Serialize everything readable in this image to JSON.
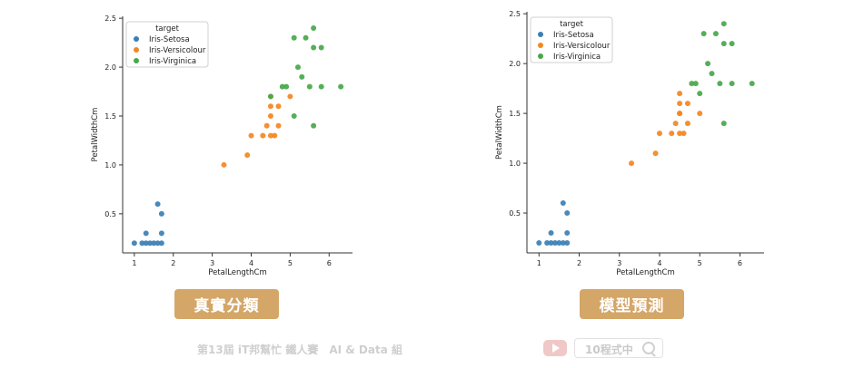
{
  "colors": {
    "setosa": "#3a7fb5",
    "versicolour": "#f5861f",
    "virginica": "#47a84a",
    "badge": "#d4a668",
    "watermark": "#cfcfcf"
  },
  "badges": {
    "left": "真實分類",
    "right": "模型預測"
  },
  "watermark": {
    "event": "第13屆 iT邦幫忙 鐵人賽　AI & Data 組",
    "search_text": "10程式中"
  },
  "chart_data": [
    {
      "type": "scatter",
      "xlabel": "PetalLengthCm",
      "ylabel": "PetalWidthCm",
      "xlim": [
        0.7,
        6.6
      ],
      "ylim": [
        0.1,
        2.52
      ],
      "xticks": [
        "1",
        "2",
        "3",
        "4",
        "5",
        "6"
      ],
      "yticks": [
        "0.5",
        "1.0",
        "1.5",
        "2.0",
        "2.5"
      ],
      "legend": {
        "title": "target",
        "placement": "top-left"
      },
      "series": [
        {
          "name": "Iris-Setosa",
          "color": "setosa",
          "points": [
            [
              1.0,
              0.2
            ],
            [
              1.2,
              0.2
            ],
            [
              1.3,
              0.2
            ],
            [
              1.3,
              0.3
            ],
            [
              1.4,
              0.2
            ],
            [
              1.5,
              0.2
            ],
            [
              1.6,
              0.2
            ],
            [
              1.6,
              0.6
            ],
            [
              1.7,
              0.2
            ],
            [
              1.7,
              0.3
            ],
            [
              1.7,
              0.5
            ]
          ]
        },
        {
          "name": "Iris-Versicolour",
          "color": "versicolour",
          "points": [
            [
              3.3,
              1.0
            ],
            [
              3.9,
              1.1
            ],
            [
              4.0,
              1.3
            ],
            [
              4.3,
              1.3
            ],
            [
              4.4,
              1.4
            ],
            [
              4.5,
              1.3
            ],
            [
              4.5,
              1.5
            ],
            [
              4.5,
              1.6
            ],
            [
              4.6,
              1.3
            ],
            [
              4.7,
              1.4
            ],
            [
              4.7,
              1.6
            ],
            [
              5.0,
              1.7
            ],
            [
              4.5,
              1.7
            ]
          ]
        },
        {
          "name": "Iris-Virginica",
          "color": "virginica",
          "points": [
            [
              4.8,
              1.8
            ],
            [
              4.9,
              1.8
            ],
            [
              5.1,
              1.5
            ],
            [
              5.1,
              2.3
            ],
            [
              5.2,
              2.0
            ],
            [
              5.3,
              1.9
            ],
            [
              5.4,
              2.3
            ],
            [
              5.5,
              1.8
            ],
            [
              5.6,
              2.2
            ],
            [
              5.6,
              2.4
            ],
            [
              5.6,
              1.4
            ],
            [
              5.8,
              2.2
            ],
            [
              5.8,
              1.8
            ],
            [
              6.3,
              1.8
            ],
            [
              4.5,
              1.7
            ]
          ]
        }
      ]
    },
    {
      "type": "scatter",
      "xlabel": "PetalLengthCm",
      "ylabel": "PetalWidthCm",
      "xlim": [
        0.7,
        6.6
      ],
      "ylim": [
        0.1,
        2.52
      ],
      "xticks": [
        "1",
        "2",
        "3",
        "4",
        "5",
        "6"
      ],
      "yticks": [
        "0.5",
        "1.0",
        "1.5",
        "2.0",
        "2.5"
      ],
      "legend": {
        "title": "target",
        "placement": "top-left"
      },
      "series": [
        {
          "name": "Iris-Setosa",
          "color": "setosa",
          "points": [
            [
              1.0,
              0.2
            ],
            [
              1.2,
              0.2
            ],
            [
              1.3,
              0.2
            ],
            [
              1.3,
              0.3
            ],
            [
              1.4,
              0.2
            ],
            [
              1.5,
              0.2
            ],
            [
              1.6,
              0.2
            ],
            [
              1.6,
              0.6
            ],
            [
              1.7,
              0.2
            ],
            [
              1.7,
              0.3
            ],
            [
              1.7,
              0.5
            ]
          ]
        },
        {
          "name": "Iris-Versicolour",
          "color": "versicolour",
          "points": [
            [
              3.3,
              1.0
            ],
            [
              3.9,
              1.1
            ],
            [
              4.0,
              1.3
            ],
            [
              4.3,
              1.3
            ],
            [
              4.4,
              1.4
            ],
            [
              4.5,
              1.3
            ],
            [
              4.5,
              1.5
            ],
            [
              4.5,
              1.6
            ],
            [
              4.5,
              1.7
            ],
            [
              4.6,
              1.3
            ],
            [
              4.7,
              1.4
            ],
            [
              4.7,
              1.6
            ],
            [
              5.0,
              1.5
            ],
            [
              4.5,
              1.5
            ]
          ]
        },
        {
          "name": "Iris-Virginica",
          "color": "virginica",
          "points": [
            [
              4.8,
              1.8
            ],
            [
              4.9,
              1.8
            ],
            [
              5.0,
              1.7
            ],
            [
              5.1,
              2.3
            ],
            [
              5.2,
              2.0
            ],
            [
              5.3,
              1.9
            ],
            [
              5.4,
              2.3
            ],
            [
              5.5,
              1.8
            ],
            [
              5.6,
              2.2
            ],
            [
              5.6,
              2.4
            ],
            [
              5.6,
              1.4
            ],
            [
              5.8,
              2.2
            ],
            [
              5.8,
              1.8
            ],
            [
              6.3,
              1.8
            ]
          ]
        }
      ]
    }
  ]
}
